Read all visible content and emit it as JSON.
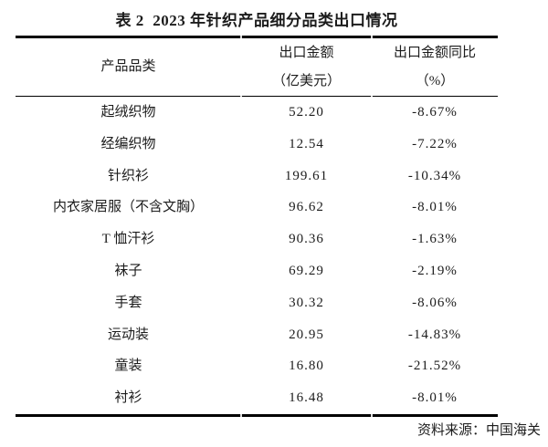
{
  "title": "表 2  2023 年针织产品细分品类出口情况",
  "table": {
    "headers": {
      "col1": "产品品类",
      "col2_line1": "出口金额",
      "col2_line2": "（亿美元）",
      "col3_line1": "出口金额同比",
      "col3_line2": "（%）"
    },
    "rows": [
      {
        "category": "起绒织物",
        "amount": "52.20",
        "yoy": "-8.67%"
      },
      {
        "category": "经编织物",
        "amount": "12.54",
        "yoy": "-7.22%"
      },
      {
        "category": "针织衫",
        "amount": "199.61",
        "yoy": "-10.34%"
      },
      {
        "category": "内衣家居服（不含文胸）",
        "amount": "96.62",
        "yoy": "-8.01%"
      },
      {
        "category": "T 恤汗衫",
        "amount": "90.36",
        "yoy": "-1.63%"
      },
      {
        "category": "袜子",
        "amount": "69.29",
        "yoy": "-2.19%"
      },
      {
        "category": "手套",
        "amount": "30.32",
        "yoy": "-8.06%"
      },
      {
        "category": "运动装",
        "amount": "20.95",
        "yoy": "-14.83%"
      },
      {
        "category": "童装",
        "amount": "16.80",
        "yoy": "-21.52%"
      },
      {
        "category": "衬衫",
        "amount": "16.48",
        "yoy": "-8.01%"
      }
    ]
  },
  "footer": {
    "source": "资料来源：中国海关"
  },
  "colors": {
    "text": "#1c1c1c",
    "rule": "#000000",
    "background": "#ffffff"
  }
}
